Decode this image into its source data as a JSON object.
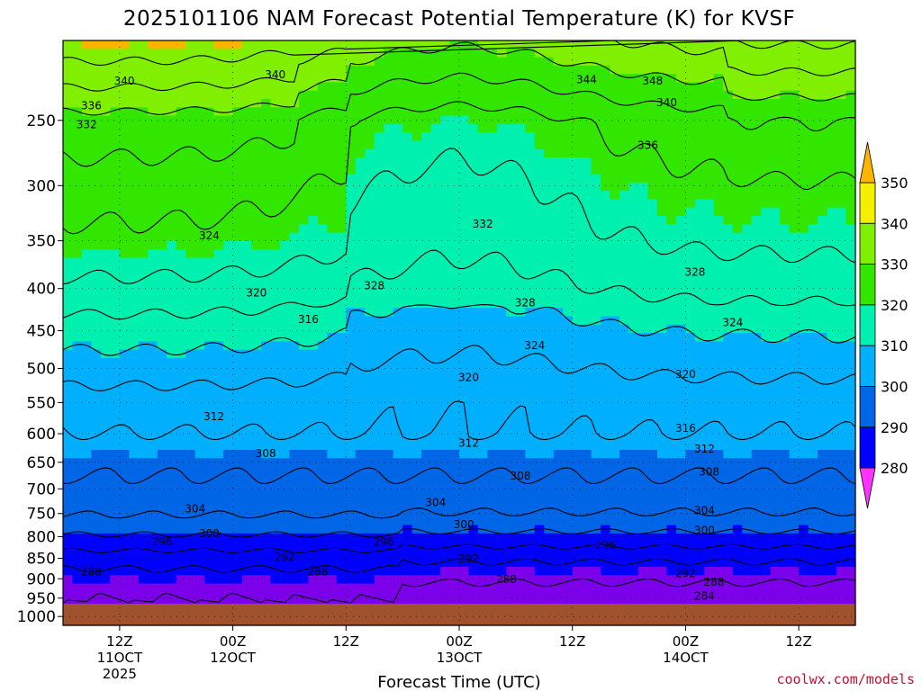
{
  "title": "2025101106 NAM Forecast Potential Temperature (K) for KVSF",
  "xlabel": "Forecast Time (UTC)",
  "credit": "coolwx.com/models",
  "colors": {
    "fill_bands": [
      "#9a00ff",
      "#7d00ea",
      "#0000ff",
      "#0066e6",
      "#00b0ff",
      "#00f0b0",
      "#33e600",
      "#80f000",
      "#f5f000",
      "#ffb400"
    ],
    "ground": "#a0522d",
    "contour": "#000000",
    "grid": "#000000"
  },
  "chart_data": {
    "type": "heatmap",
    "title": "2025101106 NAM Forecast Potential Temperature (K) for KVSF",
    "xlabel": "Forecast Time (UTC)",
    "ylabel": "",
    "variable_units": "K",
    "x_ticks": [
      {
        "label": "12Z",
        "sub": [
          "11OCT",
          "2025"
        ],
        "hour": 6
      },
      {
        "label": "00Z",
        "sub": [
          "12OCT"
        ],
        "hour": 18
      },
      {
        "label": "12Z",
        "sub": [],
        "hour": 30
      },
      {
        "label": "00Z",
        "sub": [
          "13OCT"
        ],
        "hour": 42
      },
      {
        "label": "12Z",
        "sub": [],
        "hour": 54
      },
      {
        "label": "00Z",
        "sub": [
          "14OCT"
        ],
        "hour": 66
      },
      {
        "label": "12Z",
        "sub": [],
        "hour": 78
      }
    ],
    "x_range_hours": [
      0,
      84
    ],
    "y_axis": {
      "type": "log-pressure",
      "units": "hPa",
      "ticks": [
        250,
        300,
        350,
        400,
        450,
        500,
        550,
        600,
        650,
        700,
        750,
        800,
        850,
        900,
        950,
        1000
      ],
      "range": [
        200,
        1025
      ],
      "inverted": true
    },
    "ground_level_hpa": 965,
    "grid": true,
    "colorbar": {
      "levels": [
        280,
        290,
        300,
        310,
        320,
        330,
        340,
        350
      ],
      "position": "right",
      "extend": "both"
    },
    "contour_interval": 4,
    "contour_labels": [
      {
        "value": 340,
        "hour": 6.5,
        "p": 224
      },
      {
        "value": 340,
        "hour": 22.5,
        "p": 220
      },
      {
        "value": 344,
        "hour": 55.5,
        "p": 223
      },
      {
        "value": 348,
        "hour": 62.5,
        "p": 224
      },
      {
        "value": 340,
        "hour": 64,
        "p": 238
      },
      {
        "value": 336,
        "hour": 3,
        "p": 240
      },
      {
        "value": 332,
        "hour": 2.5,
        "p": 253
      },
      {
        "value": 336,
        "hour": 62,
        "p": 268
      },
      {
        "value": 332,
        "hour": 44.5,
        "p": 334
      },
      {
        "value": 324,
        "hour": 15.5,
        "p": 345
      },
      {
        "value": 328,
        "hour": 67,
        "p": 382
      },
      {
        "value": 328,
        "hour": 33,
        "p": 397
      },
      {
        "value": 328,
        "hour": 49,
        "p": 416
      },
      {
        "value": 320,
        "hour": 20.5,
        "p": 405
      },
      {
        "value": 316,
        "hour": 26,
        "p": 436
      },
      {
        "value": 324,
        "hour": 71,
        "p": 440
      },
      {
        "value": 324,
        "hour": 50,
        "p": 469
      },
      {
        "value": 320,
        "hour": 66,
        "p": 508
      },
      {
        "value": 320,
        "hour": 43,
        "p": 513
      },
      {
        "value": 312,
        "hour": 16,
        "p": 572
      },
      {
        "value": 316,
        "hour": 66,
        "p": 591
      },
      {
        "value": 312,
        "hour": 43,
        "p": 616
      },
      {
        "value": 312,
        "hour": 68,
        "p": 626
      },
      {
        "value": 308,
        "hour": 21.5,
        "p": 634
      },
      {
        "value": 308,
        "hour": 48.5,
        "p": 675
      },
      {
        "value": 308,
        "hour": 68.5,
        "p": 668
      },
      {
        "value": 304,
        "hour": 39.5,
        "p": 727
      },
      {
        "value": 304,
        "hour": 14,
        "p": 740
      },
      {
        "value": 304,
        "hour": 68,
        "p": 744
      },
      {
        "value": 300,
        "hour": 42.5,
        "p": 773
      },
      {
        "value": 300,
        "hour": 15.5,
        "p": 793
      },
      {
        "value": 300,
        "hour": 68,
        "p": 786
      },
      {
        "value": 296,
        "hour": 10.5,
        "p": 811
      },
      {
        "value": 296,
        "hour": 34,
        "p": 812
      },
      {
        "value": 296,
        "hour": 57.5,
        "p": 820
      },
      {
        "value": 292,
        "hour": 23.5,
        "p": 848
      },
      {
        "value": 292,
        "hour": 43,
        "p": 851
      },
      {
        "value": 292,
        "hour": 66,
        "p": 887
      },
      {
        "value": 288,
        "hour": 3,
        "p": 883
      },
      {
        "value": 288,
        "hour": 27,
        "p": 883
      },
      {
        "value": 288,
        "hour": 47,
        "p": 902
      },
      {
        "value": 288,
        "hour": 69,
        "p": 909
      },
      {
        "value": 284,
        "hour": 68,
        "p": 945
      }
    ]
  }
}
